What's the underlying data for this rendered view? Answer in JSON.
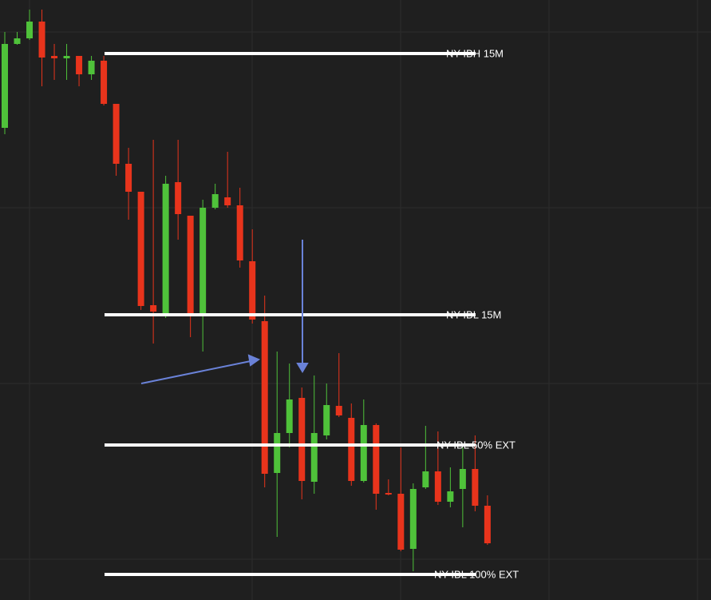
{
  "chart_data": {
    "type": "candlestick",
    "ylim": [
      0,
      751
    ],
    "up_color": "#4fc23a",
    "down_color": "#e8341c",
    "level_color": "#ffffff",
    "open": [
      591,
      696,
      703,
      724,
      681,
      678,
      681,
      658,
      675,
      621,
      546,
      511,
      369,
      359,
      523,
      481,
      359,
      491,
      504,
      494,
      424,
      349,
      159,
      209,
      253,
      148,
      206,
      243,
      228,
      149,
      219,
      134,
      133,
      64,
      141,
      161,
      123,
      139,
      164,
      118
    ],
    "high": [
      711,
      711,
      739,
      739,
      696,
      696,
      681,
      681,
      681,
      621,
      566,
      511,
      576,
      531,
      576,
      481,
      501,
      521,
      561,
      516,
      464,
      381,
      311,
      296,
      266,
      281,
      271,
      309,
      246,
      251,
      221,
      151,
      191,
      146,
      218,
      211,
      166,
      191,
      206,
      131
    ],
    "low": [
      583,
      695,
      701,
      643,
      651,
      651,
      643,
      651,
      619,
      531,
      476,
      363,
      321,
      353,
      451,
      329,
      311,
      489,
      491,
      416,
      346,
      141,
      79,
      191,
      126,
      133,
      201,
      229,
      143,
      147,
      113,
      131,
      61,
      36,
      139,
      119,
      116,
      91,
      111,
      69
    ],
    "close": [
      696,
      703,
      724,
      679,
      678,
      681,
      658,
      675,
      621,
      546,
      511,
      368,
      361,
      521,
      483,
      359,
      491,
      508,
      494,
      425,
      351,
      158,
      209,
      251,
      149,
      209,
      244,
      231,
      149,
      219,
      133,
      132,
      63,
      139,
      161,
      123,
      136,
      164,
      118,
      71
    ],
    "levels": [
      {
        "value": 684,
        "label": "NY IBH 15M"
      },
      {
        "value": 357,
        "label": "NY IBL 15M"
      },
      {
        "value": 194,
        "label": "NY IBL 50% EXT"
      },
      {
        "value": 32,
        "label": "NY IBL 100% EXT"
      }
    ]
  }
}
